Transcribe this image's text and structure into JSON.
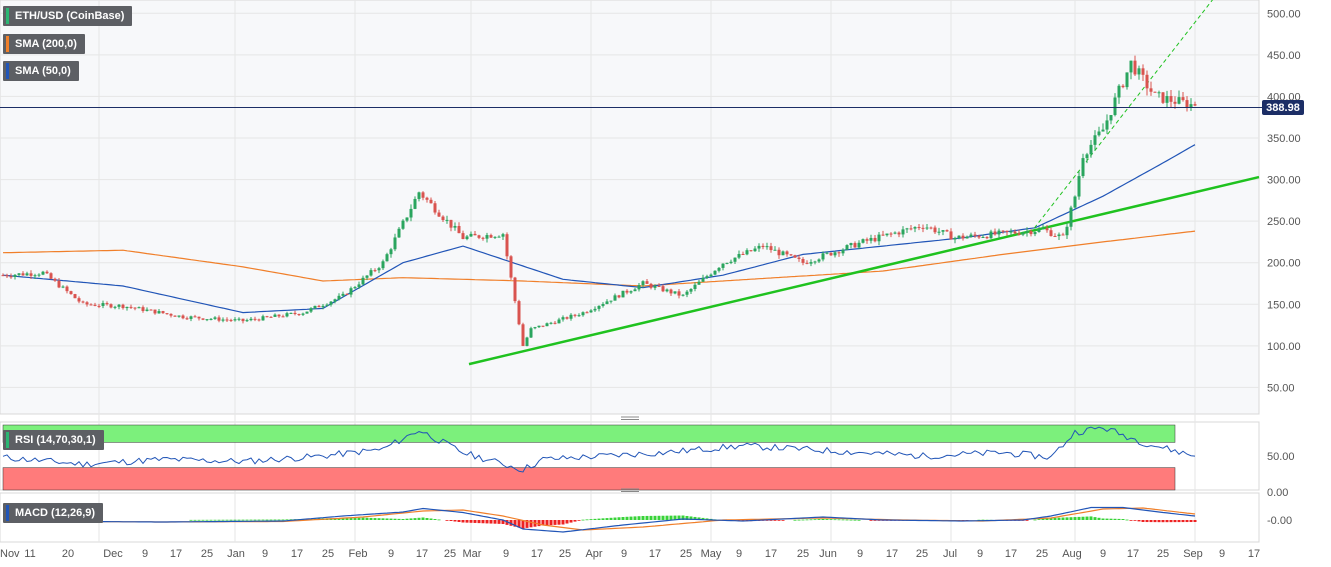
{
  "legend": {
    "main": [
      {
        "label": "ETH/USD (CoinBase)",
        "color": "#2bb673"
      },
      {
        "label": "SMA (200,0)",
        "color": "#f07f2a"
      },
      {
        "label": "SMA (50,0)",
        "color": "#2155b7"
      }
    ],
    "rsi": {
      "label": "RSI (14,70,30,1)",
      "color": "#2bb673"
    },
    "macd": {
      "label": "MACD (12,26,9)",
      "color": "#2155b7"
    }
  },
  "last_price_label": "388.98",
  "colors": {
    "up": "#2aa55e",
    "down": "#d9534f",
    "sma50": "#2155b7",
    "sma200": "#f07f2a",
    "trend": "#1fc21f",
    "rsi_over": "#7cf07c",
    "rsi_under": "#ff7b7b",
    "macd_pos": "#38d338",
    "macd_neg": "#ee2222",
    "signal": "#f07f2a",
    "price_line": "#1c2e66"
  },
  "chart_data": [
    {
      "type": "candlestick",
      "panel": "price",
      "title": "ETH/USD (CoinBase)",
      "x_ticks": [
        "Nov",
        "11",
        "20",
        "Dec",
        "9",
        "17",
        "25",
        "Jan",
        "9",
        "17",
        "25",
        "Feb",
        "9",
        "17",
        "25",
        "Mar",
        "9",
        "17",
        "25",
        "Apr",
        "9",
        "17",
        "25",
        "May",
        "9",
        "17",
        "25",
        "Jun",
        "9",
        "17",
        "25",
        "Jul",
        "9",
        "17",
        "25",
        "Aug",
        "9",
        "17",
        "25",
        "Sep",
        "9",
        "17"
      ],
      "y_ticks": [
        "50.00",
        "100.00",
        "150.00",
        "200.00",
        "250.00",
        "300.00",
        "350.00",
        "400.00",
        "450.00",
        "500.00"
      ],
      "ylim": [
        18,
        516
      ],
      "last_price": 388.98,
      "series_keypoints": [
        {
          "name": "ETH/USD (CoinBase)",
          "day": [
            0,
            10,
            20,
            30,
            45,
            60,
            75,
            85,
            95,
            104,
            115,
            125,
            130,
            132,
            145,
            160,
            170,
            180,
            190,
            200,
            215,
            230,
            238,
            250,
            260,
            265,
            268,
            270,
            275,
            278,
            282,
            288,
            298
          ],
          "close": [
            185,
            188,
            150,
            148,
            135,
            130,
            140,
            160,
            200,
            285,
            230,
            235,
            100,
            120,
            140,
            175,
            160,
            200,
            220,
            200,
            225,
            245,
            230,
            235,
            240,
            230,
            280,
            330,
            360,
            395,
            440,
            400,
            388.98
          ]
        },
        {
          "name": "SMA (200,0)",
          "day": [
            0,
            30,
            60,
            80,
            100,
            130,
            160,
            180,
            220,
            250,
            275,
            298
          ],
          "value": [
            212,
            215,
            195,
            178,
            182,
            178,
            172,
            178,
            190,
            210,
            225,
            238
          ]
        },
        {
          "name": "SMA (50,0)",
          "day": [
            0,
            30,
            60,
            80,
            100,
            115,
            140,
            160,
            180,
            200,
            220,
            240,
            258,
            275,
            290,
            298
          ],
          "value": [
            185,
            172,
            140,
            145,
            200,
            220,
            180,
            170,
            185,
            210,
            220,
            230,
            242,
            280,
            320,
            342
          ]
        }
      ],
      "trend_lines": [
        {
          "name": "rising support",
          "from": [
            "Mar 2020",
            78
          ],
          "to": [
            "Sep 17 2020",
            303
          ]
        },
        {
          "name": "dashed channel",
          "from": [
            "Jul 2020",
            235
          ],
          "to": [
            "Aug 2020",
            520
          ]
        }
      ]
    },
    {
      "type": "line",
      "panel": "rsi",
      "title": "RSI (14,70,30,1)",
      "y_ticks": [
        "0.00",
        "50.00"
      ],
      "ylim": [
        0,
        100
      ],
      "overbought": 70,
      "oversold": 30,
      "series_keypoints": [
        {
          "name": "RSI",
          "day": [
            0,
            20,
            40,
            60,
            80,
            95,
            104,
            115,
            130,
            135,
            150,
            165,
            185,
            200,
            215,
            230,
            250,
            262,
            268,
            275,
            285,
            298
          ],
          "value": [
            48,
            38,
            45,
            42,
            50,
            60,
            88,
            55,
            30,
            45,
            50,
            55,
            65,
            60,
            55,
            50,
            55,
            48,
            85,
            92,
            70,
            50
          ]
        }
      ]
    },
    {
      "type": "line",
      "panel": "macd",
      "title": "MACD (12,26,9)",
      "y_ticks": [
        "-0.00"
      ],
      "series_keypoints": [
        {
          "name": "MACD",
          "day": [
            0,
            40,
            70,
            85,
            100,
            105,
            115,
            125,
            130,
            140,
            155,
            170,
            185,
            205,
            220,
            240,
            255,
            262,
            272,
            280,
            290,
            298
          ],
          "value": [
            -2,
            -4,
            -2,
            8,
            16,
            23,
            15,
            0,
            -18,
            -24,
            -10,
            2,
            -2,
            6,
            0,
            -2,
            0,
            8,
            25,
            25,
            15,
            8
          ]
        },
        {
          "name": "Signal",
          "day": [
            0,
            40,
            70,
            90,
            105,
            115,
            125,
            135,
            145,
            160,
            180,
            205,
            225,
            245,
            262,
            275,
            285,
            298
          ],
          "value": [
            -2,
            -4,
            -3,
            6,
            18,
            20,
            8,
            -10,
            -20,
            -14,
            0,
            4,
            0,
            -2,
            4,
            22,
            24,
            12
          ]
        }
      ]
    }
  ]
}
